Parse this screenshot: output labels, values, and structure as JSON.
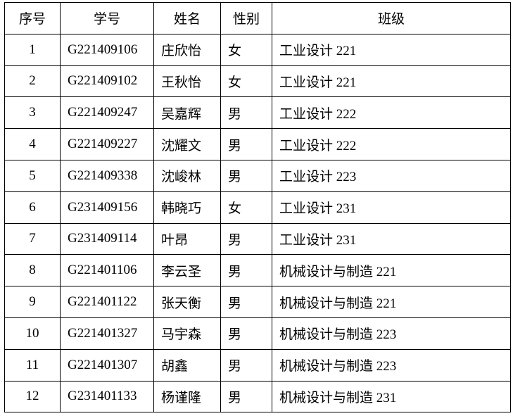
{
  "table": {
    "header": [
      "序号",
      "学号",
      "姓名",
      "性别",
      "班级"
    ],
    "rows": [
      [
        "1",
        "G221409106",
        "庄欣怡",
        "女",
        "工业设计 221"
      ],
      [
        "2",
        "G221409102",
        "王秋怡",
        "女",
        "工业设计 221"
      ],
      [
        "3",
        "G221409247",
        "吴嘉辉",
        "男",
        "工业设计 222"
      ],
      [
        "4",
        "G221409227",
        "沈耀文",
        "男",
        "工业设计 222"
      ],
      [
        "5",
        "G221409338",
        "沈峻林",
        "男",
        "工业设计 223"
      ],
      [
        "6",
        "G231409156",
        "韩晓巧",
        "女",
        "工业设计 231"
      ],
      [
        "7",
        "G231409114",
        "叶昂",
        "男",
        "工业设计 231"
      ],
      [
        "8",
        "G221401106",
        "李云圣",
        "男",
        "机械设计与制造 221"
      ],
      [
        "9",
        "G221401122",
        "张天衡",
        "男",
        "机械设计与制造 221"
      ],
      [
        "10",
        "G221401327",
        "马宇森",
        "男",
        "机械设计与制造 223"
      ],
      [
        "11",
        "G221401307",
        "胡鑫",
        "男",
        "机械设计与制造 223"
      ],
      [
        "12",
        "G231401133",
        "杨谨隆",
        "男",
        "机械设计与制造 231"
      ]
    ]
  }
}
